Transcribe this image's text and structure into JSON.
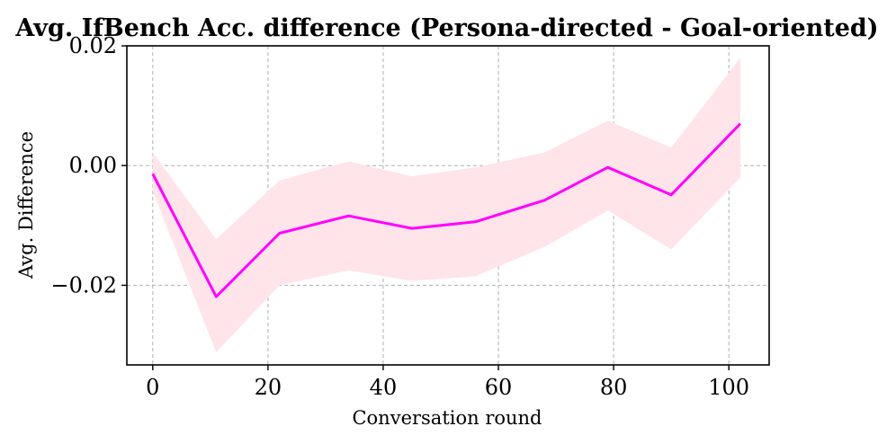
{
  "chart_data": {
    "type": "line",
    "title": "Avg. IfBench Acc. difference (Persona-directed - Goal-oriented)",
    "xlabel": "Conversation round",
    "ylabel": "Avg. Difference",
    "xlim": [
      -4.5,
      107
    ],
    "ylim": [
      -0.0333,
      0.02
    ],
    "xticks": [
      0,
      20,
      40,
      60,
      80,
      100
    ],
    "xtick_labels": [
      "0",
      "20",
      "40",
      "60",
      "80",
      "100"
    ],
    "yticks": [
      0.02,
      0.0,
      -0.02
    ],
    "ytick_labels": [
      "0.02",
      "0.00",
      "−0.02"
    ],
    "grid": true,
    "series": [
      {
        "x": [
          0,
          11,
          22,
          34,
          45,
          56,
          68,
          79,
          90,
          102
        ],
        "values": [
          -0.0014,
          -0.0219,
          -0.0113,
          -0.0084,
          -0.0105,
          -0.0094,
          -0.0058,
          -0.0003,
          -0.0049,
          0.007
        ],
        "lower": [
          -0.0043,
          -0.0312,
          -0.02,
          -0.0175,
          -0.0193,
          -0.0185,
          -0.0136,
          -0.0075,
          -0.014,
          -0.002
        ],
        "upper": [
          0.0022,
          -0.0123,
          -0.0025,
          0.0007,
          -0.0018,
          -0.0003,
          0.0022,
          0.0075,
          0.003,
          0.018
        ],
        "line_color": "#ff00ff",
        "band_color": "#ffe4ea"
      }
    ]
  }
}
